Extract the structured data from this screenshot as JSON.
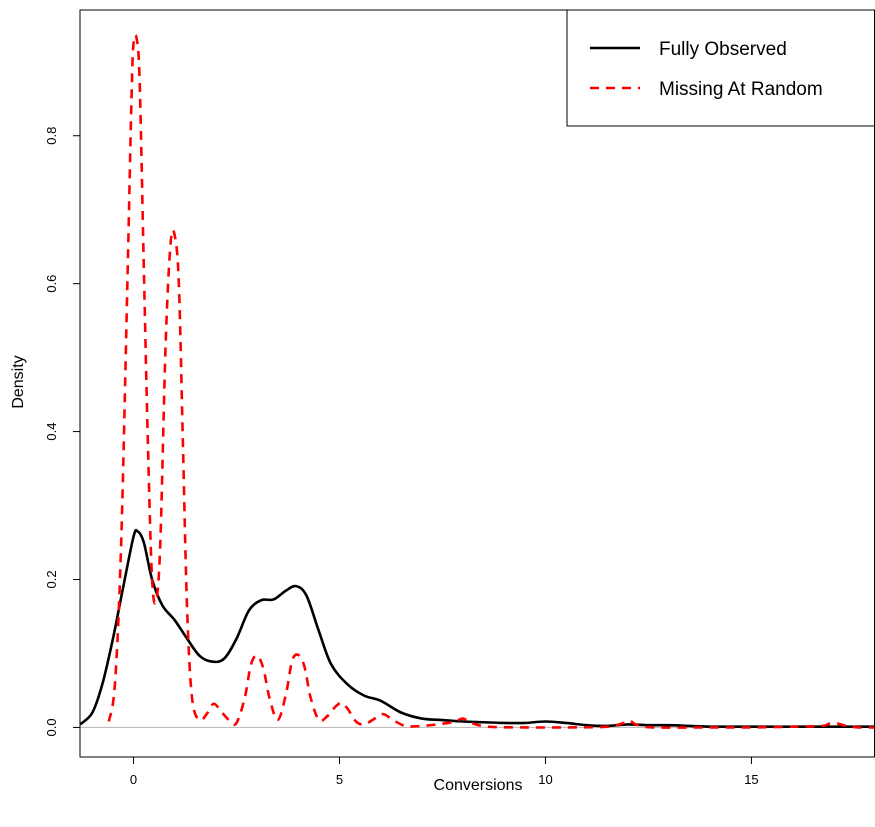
{
  "chart_data": {
    "type": "line",
    "title": "",
    "xlabel": "Conversions",
    "ylabel": "Density",
    "xlim": [
      -1.3,
      18.0
    ],
    "ylim": [
      -0.04,
      0.97
    ],
    "x_ticks": [
      0,
      5,
      10,
      15
    ],
    "y_ticks": [
      0.0,
      0.2,
      0.4,
      0.6,
      0.8
    ],
    "x_tick_labels": [
      "0",
      "5",
      "10",
      "15"
    ],
    "y_tick_labels": [
      "0.0",
      "0.2",
      "0.4",
      "0.6",
      "0.8"
    ],
    "grid": false,
    "baseline_y": 0,
    "baseline_color": "#bfbfbf",
    "legend": {
      "position": "top-right"
    },
    "series": [
      {
        "name": "Fully Observed",
        "color": "#000000",
        "dash": "solid",
        "points": [
          [
            -1.3,
            0.004
          ],
          [
            -1.0,
            0.02
          ],
          [
            -0.75,
            0.06
          ],
          [
            -0.5,
            0.12
          ],
          [
            -0.25,
            0.19
          ],
          [
            0.0,
            0.258
          ],
          [
            0.1,
            0.265
          ],
          [
            0.25,
            0.25
          ],
          [
            0.45,
            0.2
          ],
          [
            0.7,
            0.165
          ],
          [
            1.0,
            0.145
          ],
          [
            1.3,
            0.12
          ],
          [
            1.6,
            0.097
          ],
          [
            1.9,
            0.089
          ],
          [
            2.2,
            0.093
          ],
          [
            2.5,
            0.12
          ],
          [
            2.8,
            0.158
          ],
          [
            3.1,
            0.172
          ],
          [
            3.4,
            0.173
          ],
          [
            3.7,
            0.185
          ],
          [
            3.95,
            0.191
          ],
          [
            4.2,
            0.178
          ],
          [
            4.5,
            0.13
          ],
          [
            4.8,
            0.085
          ],
          [
            5.2,
            0.058
          ],
          [
            5.6,
            0.043
          ],
          [
            6.0,
            0.036
          ],
          [
            6.5,
            0.02
          ],
          [
            7.0,
            0.012
          ],
          [
            7.5,
            0.01
          ],
          [
            8.0,
            0.008
          ],
          [
            8.5,
            0.007
          ],
          [
            9.0,
            0.006
          ],
          [
            9.5,
            0.006
          ],
          [
            10.0,
            0.008
          ],
          [
            10.5,
            0.006
          ],
          [
            11.0,
            0.003
          ],
          [
            11.5,
            0.002
          ],
          [
            12.0,
            0.004
          ],
          [
            12.5,
            0.003
          ],
          [
            13.0,
            0.003
          ],
          [
            13.5,
            0.002
          ],
          [
            14.0,
            0.001
          ],
          [
            15.0,
            0.001
          ],
          [
            16.0,
            0.001
          ],
          [
            17.0,
            0.001
          ],
          [
            18.0,
            0.001
          ]
        ]
      },
      {
        "name": "Missing At Random",
        "color": "#ff0000",
        "dash": "dashed",
        "points": [
          [
            -0.6,
            0.008
          ],
          [
            -0.45,
            0.06
          ],
          [
            -0.3,
            0.25
          ],
          [
            -0.15,
            0.6
          ],
          [
            -0.05,
            0.85
          ],
          [
            0.0,
            0.925
          ],
          [
            0.08,
            0.93
          ],
          [
            0.15,
            0.87
          ],
          [
            0.25,
            0.62
          ],
          [
            0.35,
            0.38
          ],
          [
            0.45,
            0.2
          ],
          [
            0.55,
            0.172
          ],
          [
            0.65,
            0.25
          ],
          [
            0.78,
            0.52
          ],
          [
            0.9,
            0.655
          ],
          [
            1.0,
            0.665
          ],
          [
            1.1,
            0.6
          ],
          [
            1.2,
            0.38
          ],
          [
            1.3,
            0.16
          ],
          [
            1.42,
            0.04
          ],
          [
            1.6,
            0.01
          ],
          [
            1.8,
            0.02
          ],
          [
            1.95,
            0.032
          ],
          [
            2.15,
            0.02
          ],
          [
            2.35,
            0.008
          ],
          [
            2.5,
            0.006
          ],
          [
            2.7,
            0.04
          ],
          [
            2.85,
            0.085
          ],
          [
            3.0,
            0.097
          ],
          [
            3.15,
            0.08
          ],
          [
            3.3,
            0.04
          ],
          [
            3.5,
            0.01
          ],
          [
            3.7,
            0.045
          ],
          [
            3.85,
            0.09
          ],
          [
            4.0,
            0.098
          ],
          [
            4.15,
            0.082
          ],
          [
            4.3,
            0.04
          ],
          [
            4.5,
            0.01
          ],
          [
            4.7,
            0.015
          ],
          [
            4.9,
            0.028
          ],
          [
            5.05,
            0.033
          ],
          [
            5.2,
            0.025
          ],
          [
            5.4,
            0.008
          ],
          [
            5.6,
            0.004
          ],
          [
            5.8,
            0.01
          ],
          [
            6.05,
            0.018
          ],
          [
            6.3,
            0.01
          ],
          [
            6.6,
            0.002
          ],
          [
            7.0,
            0.002
          ],
          [
            7.5,
            0.005
          ],
          [
            7.8,
            0.008
          ],
          [
            8.0,
            0.012
          ],
          [
            8.2,
            0.006
          ],
          [
            8.6,
            0.001
          ],
          [
            9.5,
            0.0
          ],
          [
            10.5,
            0.0
          ],
          [
            11.5,
            0.001
          ],
          [
            11.9,
            0.006
          ],
          [
            12.05,
            0.009
          ],
          [
            12.2,
            0.004
          ],
          [
            12.6,
            0.0
          ],
          [
            14.0,
            0.0
          ],
          [
            15.0,
            0.0
          ],
          [
            16.0,
            0.001
          ],
          [
            16.7,
            0.002
          ],
          [
            16.9,
            0.005
          ],
          [
            17.1,
            0.005
          ],
          [
            17.3,
            0.002
          ],
          [
            17.6,
            0.0
          ],
          [
            18.0,
            0.0
          ]
        ]
      }
    ]
  }
}
